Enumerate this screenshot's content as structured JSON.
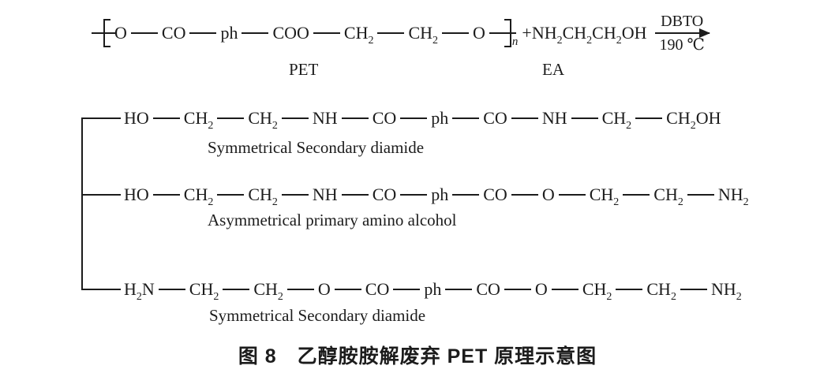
{
  "figure": {
    "reaction": {
      "polymer_groups": [
        "O",
        "CO",
        "ph",
        "COO",
        "CH_2_",
        "CH_2_",
        "O"
      ],
      "repeat_subscript": "n",
      "polymer_label": "PET",
      "reagent_formula": "+NH_2_CH_2_CH_2_OH",
      "reagent_label": "EA",
      "arrow_above": "DBTO",
      "arrow_below": "190 ℃"
    },
    "products": [
      {
        "groups": [
          "HO",
          "CH_2_",
          "CH_2_",
          "NH",
          "CO",
          "ph",
          "CO",
          "NH",
          "CH_2_",
          "CH_2_OH"
        ],
        "label": "Symmetrical Secondary diamide"
      },
      {
        "groups": [
          "HO",
          "CH_2_",
          "CH_2_",
          "NH",
          "CO",
          "ph",
          "CO",
          "O",
          "CH_2_",
          "CH_2_",
          "NH_2_"
        ],
        "label": "Asymmetrical primary amino alcohol"
      },
      {
        "groups": [
          "H_2_N",
          "CH_2_",
          "CH_2_",
          "O",
          "CO",
          "ph",
          "CO",
          "O",
          "CH_2_",
          "CH_2_",
          "NH_2_"
        ],
        "label": "Symmetrical Secondary diamide"
      }
    ],
    "caption": "图 8　乙醇胺胺解废弃 PET 原理示意图"
  },
  "colors": {
    "ink": "#1c1c1c",
    "background": "#ffffff"
  }
}
